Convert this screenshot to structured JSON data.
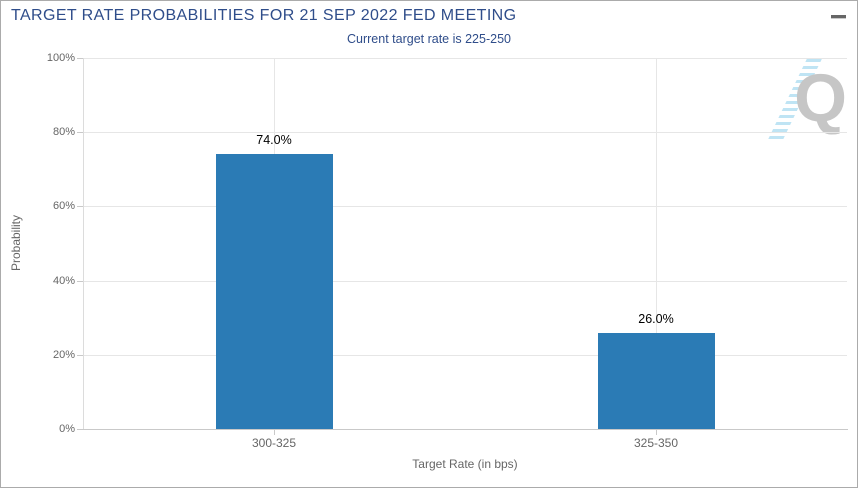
{
  "header": {
    "title": "TARGET RATE PROBABILITIES FOR 21 SEP 2022 FED MEETING",
    "subtitle": "Current target rate is 225-250",
    "menu_icon": "hamburger-menu-icon"
  },
  "chart_data": {
    "type": "bar",
    "title": "TARGET RATE PROBABILITIES FOR 21 SEP 2022 FED MEETING",
    "subtitle": "Current target rate is 225-250",
    "categories": [
      "300-325",
      "325-350"
    ],
    "values": [
      74.0,
      26.0
    ],
    "value_labels": [
      "74.0%",
      "26.0%"
    ],
    "xlabel": "Target Rate (in bps)",
    "ylabel": "Probability",
    "ylim": [
      0,
      100
    ],
    "yticks": [
      0,
      20,
      40,
      60,
      80,
      100
    ],
    "ytick_labels": [
      "0%",
      "20%",
      "40%",
      "60%",
      "80%",
      "100%"
    ],
    "grid": true,
    "legend": "none",
    "bar_color": "#2b7bb5"
  },
  "watermark": {
    "letter": "Q"
  },
  "colors": {
    "title_navy": "#2f4d8a",
    "bar_blue": "#2b7bb5",
    "tick_label_gray": "#666666",
    "gridline_gray": "#e6e6e6",
    "axis_gray": "#c9c9c9",
    "watermark_gray": "#c6c6c6",
    "watermark_stripe_blue": "#bfe4f4"
  }
}
